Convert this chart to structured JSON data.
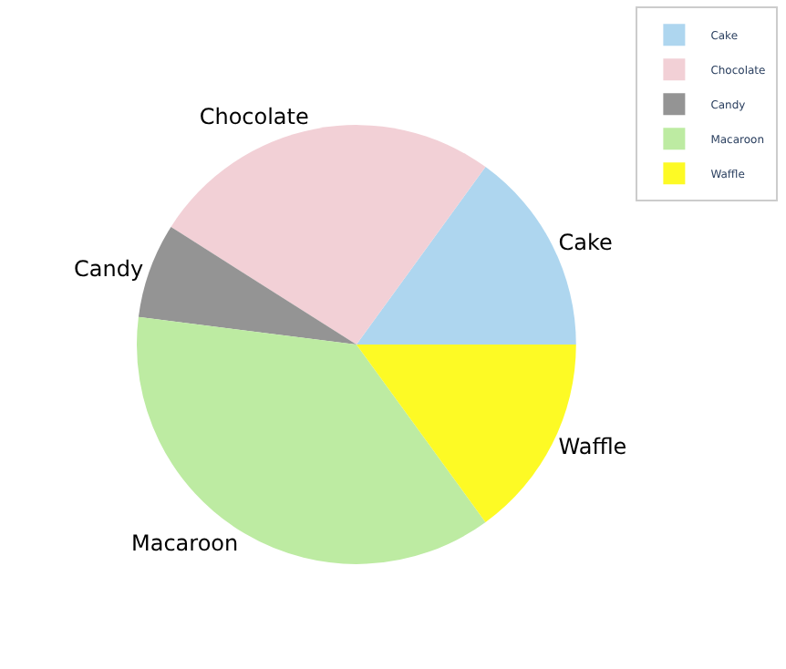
{
  "chart_data": {
    "type": "pie",
    "categories": [
      "Cake",
      "Chocolate",
      "Candy",
      "Macaroon",
      "Waffle"
    ],
    "values": [
      15,
      26,
      7,
      37,
      15
    ],
    "colors": [
      "#aed6ef",
      "#f2d0d6",
      "#949494",
      "#bdeba2",
      "#fdfa25"
    ],
    "legend": "top right"
  }
}
